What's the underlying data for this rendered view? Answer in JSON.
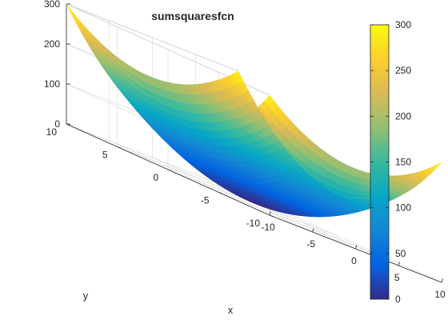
{
  "chart_data": {
    "type": "surface",
    "title": "sumsquaresfcn",
    "xlabel": "x",
    "ylabel": "y",
    "zlabel": "",
    "x_range": [
      -10,
      10
    ],
    "y_range": [
      -10,
      10
    ],
    "z_range": [
      0,
      300
    ],
    "x_ticks": [
      "-10",
      "-5",
      "0",
      "5",
      "10"
    ],
    "y_ticks": [
      "-10",
      "-5",
      "0",
      "5",
      "10"
    ],
    "z_ticks": [
      "0",
      "100",
      "200",
      "300"
    ],
    "function": "f(x,y) = x^2 + 2*y^2",
    "surface_minimum": {
      "x": 0,
      "y": 0,
      "z": 0
    },
    "corner_values": [
      {
        "x": -10,
        "y": -10,
        "z": 300
      },
      {
        "x": 10,
        "y": -10,
        "z": 300
      },
      {
        "x": -10,
        "y": 10,
        "z": 300
      },
      {
        "x": 10,
        "y": 10,
        "z": 300
      }
    ],
    "colorbar": {
      "colormap": "parula",
      "ticks": [
        "0",
        "50",
        "100",
        "150",
        "200",
        "250",
        "300"
      ],
      "range": [
        0,
        300
      ]
    },
    "grid": true
  }
}
